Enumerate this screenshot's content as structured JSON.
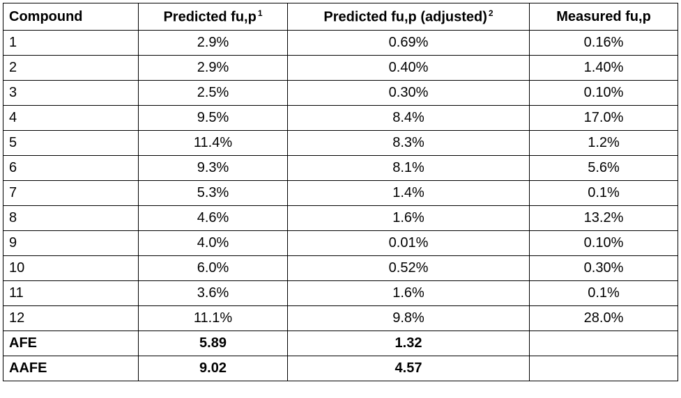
{
  "table": {
    "columns": [
      {
        "label": "Compound"
      },
      {
        "label": "Predicted fu,p",
        "note": "1"
      },
      {
        "label": "Predicted fu,p (adjusted)",
        "note": "2"
      },
      {
        "label": "Measured fu,p"
      }
    ],
    "rows": [
      [
        "1",
        "2.9%",
        "0.69%",
        "0.16%"
      ],
      [
        "2",
        "2.9%",
        "0.40%",
        "1.40%"
      ],
      [
        "3",
        "2.5%",
        "0.30%",
        "0.10%"
      ],
      [
        "4",
        "9.5%",
        "8.4%",
        "17.0%"
      ],
      [
        "5",
        "11.4%",
        "8.3%",
        "1.2%"
      ],
      [
        "6",
        "9.3%",
        "8.1%",
        "5.6%"
      ],
      [
        "7",
        "5.3%",
        "1.4%",
        "0.1%"
      ],
      [
        "8",
        "4.6%",
        "1.6%",
        "13.2%"
      ],
      [
        "9",
        "4.0%",
        "0.01%",
        "0.10%"
      ],
      [
        "10",
        "6.0%",
        "0.52%",
        "0.30%"
      ],
      [
        "11",
        "3.6%",
        "1.6%",
        "0.1%"
      ],
      [
        "12",
        "11.1%",
        "9.8%",
        "28.0%"
      ]
    ],
    "summary_rows": [
      [
        "AFE",
        "5.89",
        "1.32"
      ],
      [
        "AAFE",
        "9.02",
        "4.57"
      ]
    ]
  }
}
